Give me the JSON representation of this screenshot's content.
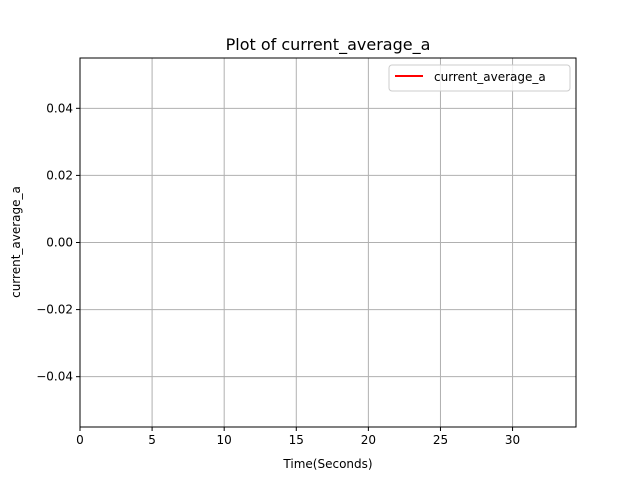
{
  "chart_data": {
    "type": "line",
    "title": "Plot of current_average_a",
    "xlabel": "Time(Seconds)",
    "ylabel": "current_average_a",
    "xlim": [
      0,
      34.4
    ],
    "ylim": [
      -0.055,
      0.055
    ],
    "x_ticks": [
      0,
      5,
      10,
      15,
      20,
      25,
      30
    ],
    "x_tick_labels": [
      "0",
      "5",
      "10",
      "15",
      "20",
      "25",
      "30"
    ],
    "y_ticks": [
      -0.04,
      -0.02,
      0.0,
      0.02,
      0.04
    ],
    "y_tick_labels": [
      "−0.04",
      "−0.02",
      "0.00",
      "0.02",
      "0.04"
    ],
    "grid": true,
    "legend_position": "upper-right",
    "series": [
      {
        "name": "current_average_a",
        "color": "#ff0000",
        "x": [],
        "y": []
      }
    ]
  }
}
